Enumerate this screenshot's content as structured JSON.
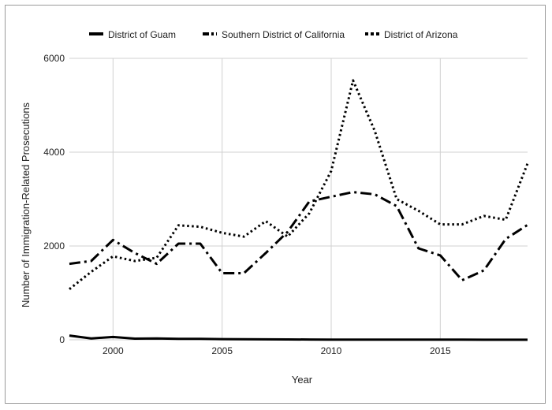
{
  "chart_data": {
    "type": "line",
    "title": "",
    "xlabel": "Year",
    "ylabel": "Number of Immigration-Related Prosecutions",
    "xlim": [
      1998,
      2019
    ],
    "ylim": [
      0,
      6000
    ],
    "x_ticks": [
      2000,
      2005,
      2010,
      2015
    ],
    "x_tick_labels": [
      "2000",
      "2005",
      "2010",
      "2015"
    ],
    "y_ticks": [
      0,
      2000,
      4000,
      6000
    ],
    "y_tick_labels": [
      "0",
      "2000",
      "4000",
      "6000"
    ],
    "grid": true,
    "legend_position": "top",
    "x": [
      1998,
      1999,
      2000,
      2001,
      2002,
      2003,
      2004,
      2005,
      2006,
      2007,
      2008,
      2009,
      2010,
      2011,
      2012,
      2013,
      2014,
      2015,
      2016,
      2017,
      2018,
      2019
    ],
    "series": [
      {
        "name": "District of Guam",
        "dash": "solid",
        "color": "#000000",
        "values": [
          90,
          30,
          60,
          25,
          30,
          20,
          20,
          15,
          12,
          10,
          8,
          6,
          5,
          5,
          5,
          4,
          3,
          3,
          3,
          2,
          2,
          2
        ]
      },
      {
        "name": "Southern District of California",
        "dash": "dashdot",
        "color": "#000000",
        "values": [
          1620,
          1680,
          2130,
          1850,
          1620,
          2050,
          2050,
          1420,
          1420,
          1850,
          2300,
          2950,
          3050,
          3150,
          3100,
          2850,
          1950,
          1800,
          1270,
          1480,
          2150,
          2450
        ]
      },
      {
        "name": "District of Arizona",
        "dash": "dot",
        "color": "#000000",
        "values": [
          1080,
          1450,
          1780,
          1680,
          1750,
          2440,
          2410,
          2280,
          2200,
          2530,
          2200,
          2700,
          3600,
          5530,
          4450,
          3000,
          2750,
          2460,
          2460,
          2640,
          2560,
          3760
        ]
      }
    ]
  }
}
